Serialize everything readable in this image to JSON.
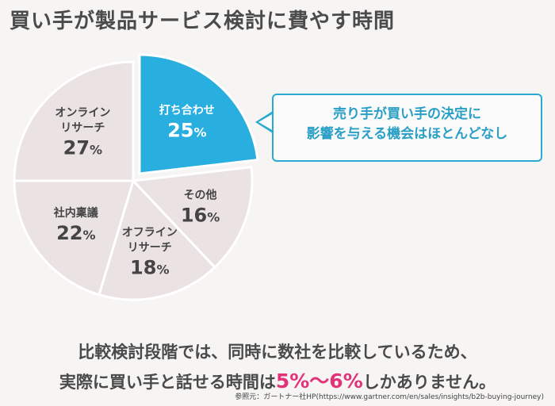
{
  "title": "買い手が製品サービス検討に費やす時間",
  "chart_data": {
    "type": "pie",
    "title": "買い手が製品サービス検討に費やす時間",
    "slices": [
      {
        "label": "打ち合わせ",
        "value": 25,
        "display": "25",
        "highlight": true,
        "color": "#29aee0"
      },
      {
        "label": "その他",
        "value": 16,
        "display": "16",
        "highlight": false,
        "color": "#ebe3e3"
      },
      {
        "label": "オフライン\nリサーチ",
        "value": 18,
        "display": "18",
        "highlight": false,
        "color": "#ebe3e3"
      },
      {
        "label": "社内稟議",
        "value": 22,
        "display": "22",
        "highlight": false,
        "color": "#ebe3e3"
      },
      {
        "label": "オンライン\nリサーチ",
        "value": 27,
        "display": "27",
        "highlight": false,
        "color": "#ebe3e3"
      }
    ],
    "unit": "%",
    "note": "slice values shown as printed; rendered proportions follow the printed percentages"
  },
  "callout": {
    "line1": "売り手が買い手の決定に",
    "line2": "影響を与える機会はほとんどなし"
  },
  "summary": {
    "line1": "比較検討段階では、同時に数社を比較しているため、",
    "line2_before": "実際に買い手と話せる時間は",
    "line2_highlight": "5%〜6%",
    "line2_after": "しかありません。"
  },
  "source": "参照元：ガートナー社HP(https://www.gartner.com/en/sales/insights/b2b-buying-journey)",
  "colors": {
    "accent": "#29aee0",
    "highlight_text": "#e2337a",
    "slice_base": "#ebe3e3",
    "callout_border": "#2aaad2"
  }
}
